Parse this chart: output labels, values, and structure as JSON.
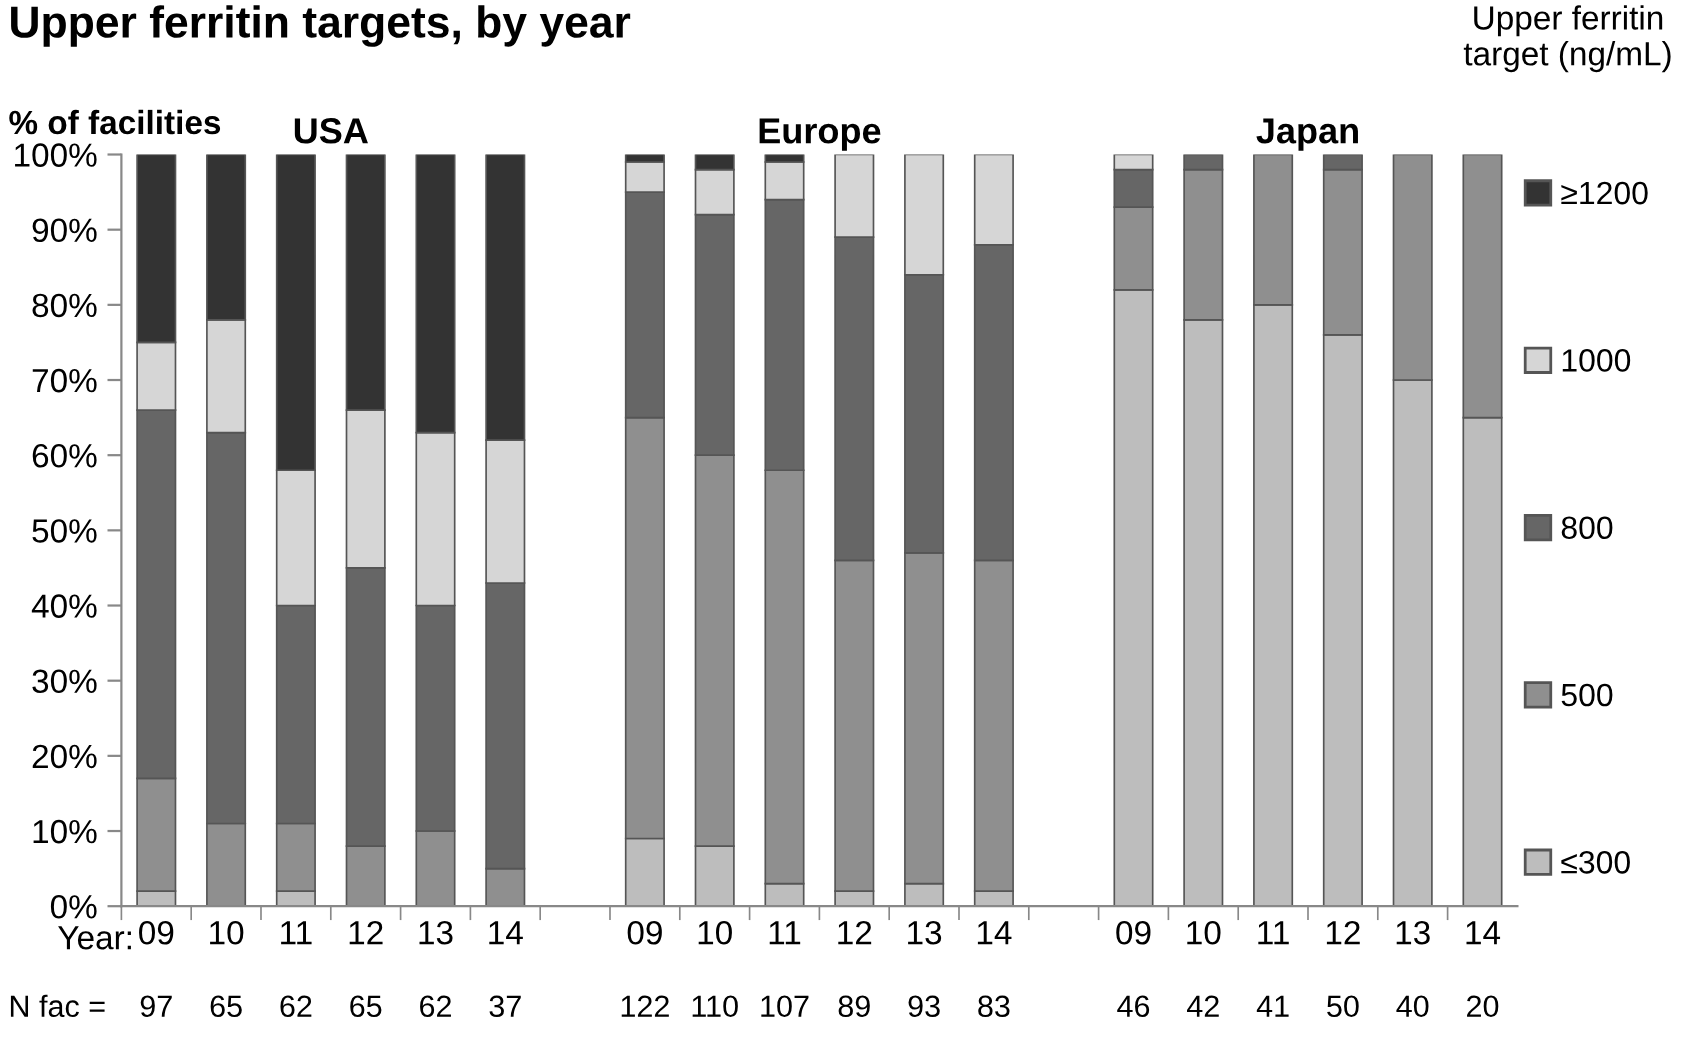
{
  "chart_data": {
    "type": "bar",
    "stacked": true,
    "title": "Upper ferritin targets, by year",
    "ylabel": "% of facilities",
    "legend_title": "Upper ferritin target (ng/mL)",
    "categories": [
      "09",
      "10",
      "11",
      "12",
      "13",
      "14",
      null,
      "09",
      "10",
      "11",
      "12",
      "13",
      "14",
      null,
      "09",
      "10",
      "11",
      "12",
      "13",
      "14"
    ],
    "series": [
      {
        "name": "≤300",
        "color": "#bdbdbd",
        "values": [
          2,
          0,
          2,
          0,
          0,
          0,
          null,
          9,
          8,
          3,
          2,
          3,
          2,
          null,
          82,
          78,
          80,
          76,
          70,
          65
        ]
      },
      {
        "name": "500",
        "color": "#8f8f8f",
        "values": [
          15,
          11,
          9,
          8,
          10,
          5,
          null,
          56,
          52,
          55,
          44,
          44,
          44,
          null,
          11,
          20,
          20,
          22,
          30,
          35
        ]
      },
      {
        "name": "800",
        "color": "#666666",
        "values": [
          49,
          52,
          29,
          37,
          30,
          38,
          null,
          30,
          32,
          36,
          43,
          37,
          42,
          null,
          5,
          2,
          0,
          2,
          0,
          0
        ]
      },
      {
        "name": "1000",
        "color": "#d6d6d6",
        "values": [
          9,
          15,
          18,
          21,
          23,
          19,
          null,
          4,
          6,
          5,
          11,
          16,
          12,
          null,
          2,
          0,
          0,
          0,
          0,
          0
        ]
      },
      {
        "name": "≥1200",
        "color": "#333333",
        "values": [
          25,
          22,
          42,
          34,
          37,
          38,
          null,
          1,
          2,
          1,
          0,
          0,
          0,
          null,
          0,
          0,
          0,
          0,
          0,
          0
        ]
      }
    ],
    "ylim": [
      0,
      100
    ],
    "yticks": [
      {
        "value": 0,
        "label": "0%"
      },
      {
        "value": 10,
        "label": "10%"
      },
      {
        "value": 20,
        "label": "20%"
      },
      {
        "value": 30,
        "label": "30%"
      },
      {
        "value": 40,
        "label": "40%"
      },
      {
        "value": 50,
        "label": "50%"
      },
      {
        "value": 60,
        "label": "60%"
      },
      {
        "value": 70,
        "label": "70%"
      },
      {
        "value": 80,
        "label": "80%"
      },
      {
        "value": 90,
        "label": "90%"
      },
      {
        "value": 100,
        "label": "100%"
      }
    ],
    "legend": "right",
    "grid": false,
    "annotations": [
      "USA",
      "Europe",
      "Japan",
      "Year:",
      "N fac =",
      "97",
      "65",
      "62",
      "65",
      "62",
      "37",
      "122",
      "110",
      "107",
      "89",
      "93",
      "83",
      "46",
      "42",
      "41",
      "50",
      "40",
      "20"
    ]
  }
}
